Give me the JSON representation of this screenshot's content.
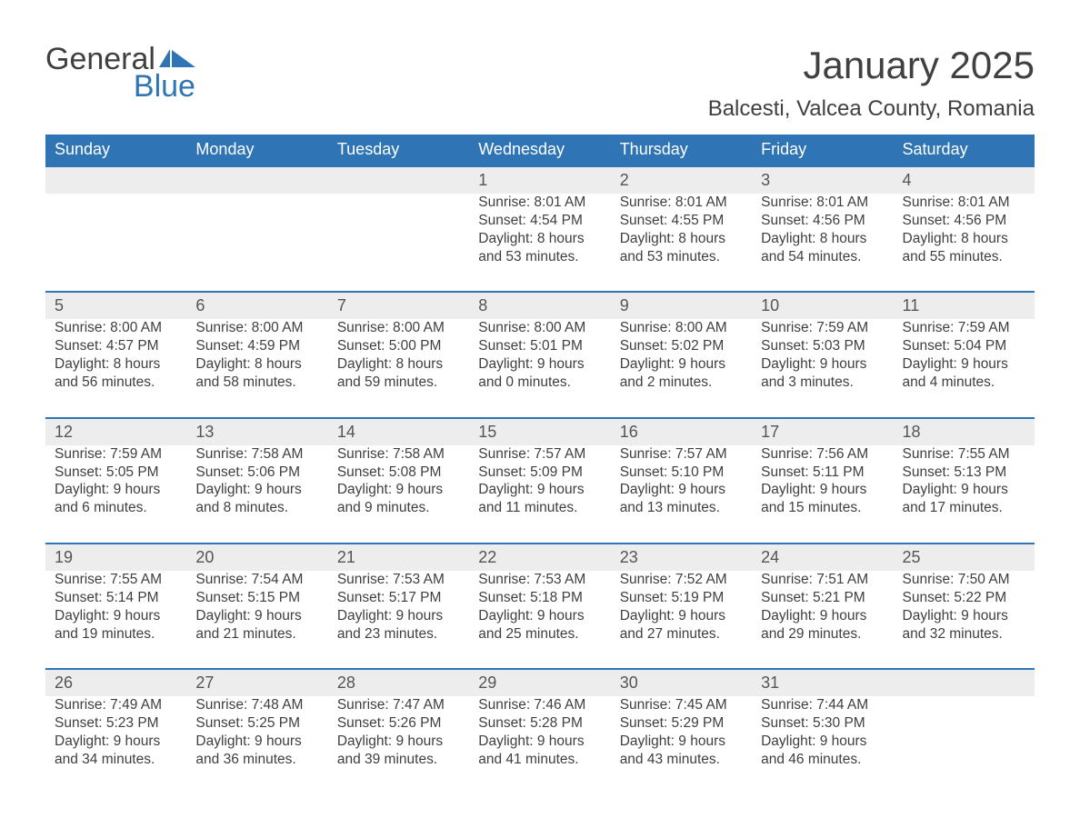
{
  "logo": {
    "word1": "General",
    "word2": "Blue"
  },
  "title": "January 2025",
  "location": "Balcesti, Valcea County, Romania",
  "colors": {
    "header_bg": "#2f74b5",
    "header_text": "#ffffff",
    "row_divider": "#2f74b5",
    "daynum_bg": "#ededed",
    "body_text": "#3f3f3f",
    "page_bg": "#ffffff"
  },
  "day_headers": [
    "Sunday",
    "Monday",
    "Tuesday",
    "Wednesday",
    "Thursday",
    "Friday",
    "Saturday"
  ],
  "labels": {
    "sunrise": "Sunrise:",
    "sunset": "Sunset:",
    "daylight": "Daylight:"
  },
  "weeks": [
    [
      null,
      null,
      null,
      {
        "n": "1",
        "sr": "8:01 AM",
        "ss": "4:54 PM",
        "dl1": "8 hours",
        "dl2": "and 53 minutes."
      },
      {
        "n": "2",
        "sr": "8:01 AM",
        "ss": "4:55 PM",
        "dl1": "8 hours",
        "dl2": "and 53 minutes."
      },
      {
        "n": "3",
        "sr": "8:01 AM",
        "ss": "4:56 PM",
        "dl1": "8 hours",
        "dl2": "and 54 minutes."
      },
      {
        "n": "4",
        "sr": "8:01 AM",
        "ss": "4:56 PM",
        "dl1": "8 hours",
        "dl2": "and 55 minutes."
      }
    ],
    [
      {
        "n": "5",
        "sr": "8:00 AM",
        "ss": "4:57 PM",
        "dl1": "8 hours",
        "dl2": "and 56 minutes."
      },
      {
        "n": "6",
        "sr": "8:00 AM",
        "ss": "4:59 PM",
        "dl1": "8 hours",
        "dl2": "and 58 minutes."
      },
      {
        "n": "7",
        "sr": "8:00 AM",
        "ss": "5:00 PM",
        "dl1": "8 hours",
        "dl2": "and 59 minutes."
      },
      {
        "n": "8",
        "sr": "8:00 AM",
        "ss": "5:01 PM",
        "dl1": "9 hours",
        "dl2": "and 0 minutes."
      },
      {
        "n": "9",
        "sr": "8:00 AM",
        "ss": "5:02 PM",
        "dl1": "9 hours",
        "dl2": "and 2 minutes."
      },
      {
        "n": "10",
        "sr": "7:59 AM",
        "ss": "5:03 PM",
        "dl1": "9 hours",
        "dl2": "and 3 minutes."
      },
      {
        "n": "11",
        "sr": "7:59 AM",
        "ss": "5:04 PM",
        "dl1": "9 hours",
        "dl2": "and 4 minutes."
      }
    ],
    [
      {
        "n": "12",
        "sr": "7:59 AM",
        "ss": "5:05 PM",
        "dl1": "9 hours",
        "dl2": "and 6 minutes."
      },
      {
        "n": "13",
        "sr": "7:58 AM",
        "ss": "5:06 PM",
        "dl1": "9 hours",
        "dl2": "and 8 minutes."
      },
      {
        "n": "14",
        "sr": "7:58 AM",
        "ss": "5:08 PM",
        "dl1": "9 hours",
        "dl2": "and 9 minutes."
      },
      {
        "n": "15",
        "sr": "7:57 AM",
        "ss": "5:09 PM",
        "dl1": "9 hours",
        "dl2": "and 11 minutes."
      },
      {
        "n": "16",
        "sr": "7:57 AM",
        "ss": "5:10 PM",
        "dl1": "9 hours",
        "dl2": "and 13 minutes."
      },
      {
        "n": "17",
        "sr": "7:56 AM",
        "ss": "5:11 PM",
        "dl1": "9 hours",
        "dl2": "and 15 minutes."
      },
      {
        "n": "18",
        "sr": "7:55 AM",
        "ss": "5:13 PM",
        "dl1": "9 hours",
        "dl2": "and 17 minutes."
      }
    ],
    [
      {
        "n": "19",
        "sr": "7:55 AM",
        "ss": "5:14 PM",
        "dl1": "9 hours",
        "dl2": "and 19 minutes."
      },
      {
        "n": "20",
        "sr": "7:54 AM",
        "ss": "5:15 PM",
        "dl1": "9 hours",
        "dl2": "and 21 minutes."
      },
      {
        "n": "21",
        "sr": "7:53 AM",
        "ss": "5:17 PM",
        "dl1": "9 hours",
        "dl2": "and 23 minutes."
      },
      {
        "n": "22",
        "sr": "7:53 AM",
        "ss": "5:18 PM",
        "dl1": "9 hours",
        "dl2": "and 25 minutes."
      },
      {
        "n": "23",
        "sr": "7:52 AM",
        "ss": "5:19 PM",
        "dl1": "9 hours",
        "dl2": "and 27 minutes."
      },
      {
        "n": "24",
        "sr": "7:51 AM",
        "ss": "5:21 PM",
        "dl1": "9 hours",
        "dl2": "and 29 minutes."
      },
      {
        "n": "25",
        "sr": "7:50 AM",
        "ss": "5:22 PM",
        "dl1": "9 hours",
        "dl2": "and 32 minutes."
      }
    ],
    [
      {
        "n": "26",
        "sr": "7:49 AM",
        "ss": "5:23 PM",
        "dl1": "9 hours",
        "dl2": "and 34 minutes."
      },
      {
        "n": "27",
        "sr": "7:48 AM",
        "ss": "5:25 PM",
        "dl1": "9 hours",
        "dl2": "and 36 minutes."
      },
      {
        "n": "28",
        "sr": "7:47 AM",
        "ss": "5:26 PM",
        "dl1": "9 hours",
        "dl2": "and 39 minutes."
      },
      {
        "n": "29",
        "sr": "7:46 AM",
        "ss": "5:28 PM",
        "dl1": "9 hours",
        "dl2": "and 41 minutes."
      },
      {
        "n": "30",
        "sr": "7:45 AM",
        "ss": "5:29 PM",
        "dl1": "9 hours",
        "dl2": "and 43 minutes."
      },
      {
        "n": "31",
        "sr": "7:44 AM",
        "ss": "5:30 PM",
        "dl1": "9 hours",
        "dl2": "and 46 minutes."
      },
      null
    ]
  ]
}
